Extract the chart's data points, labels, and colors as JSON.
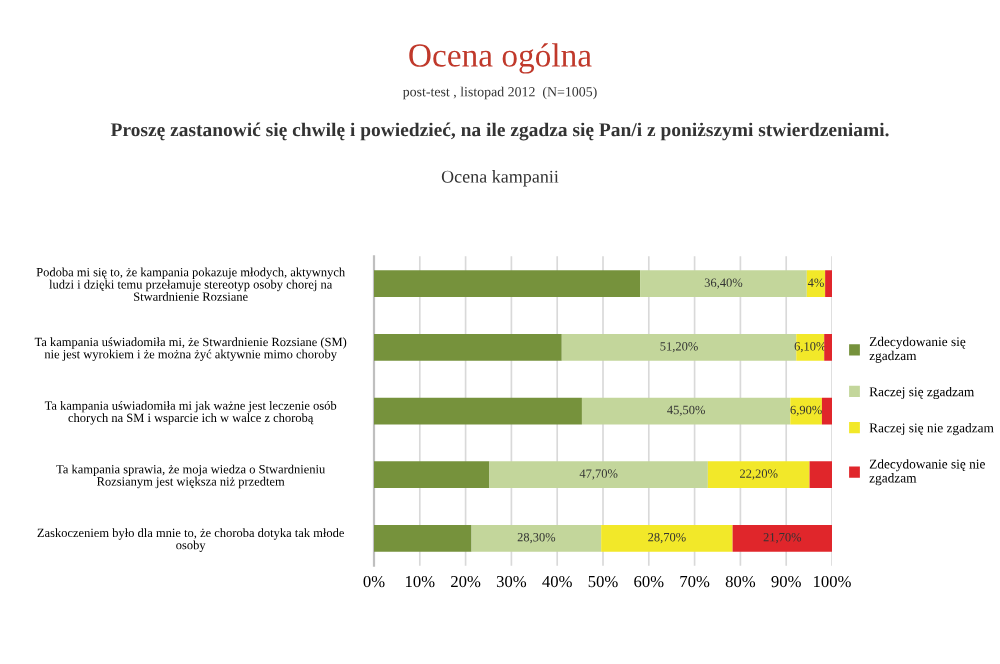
{
  "chart_data": {
    "type": "bar",
    "orientation": "horizontal",
    "stacked": true,
    "title": "Ocena ogólna",
    "subtitle": "post-test , listopad 2012  (N=1005)",
    "annotations": [
      "Proszę zastanowić się chwilę i powiedzieć, na ile zgadza się Pan/i z poniższymi stwierdzeniami.",
      "Ocena kampanii"
    ],
    "categories": [
      "Podoba mi się to, że kampania pokazuje młodych, aktywnych\nludzi i dzięki temu przełamuje stereotyp osoby chorej na\nStwardnienie Rozsiane",
      "Ta kampania uświadomiła mi, że Stwardnienie Rozsiane (SM)\nnie jest wyrokiem i że można żyć aktywnie mimo choroby",
      "Ta kampania uświadomiła mi jak ważne jest leczenie osób\nchorych na SM i wsparcie ich w walce z chorobą",
      "Ta kampania sprawia, że moja wiedza o Stwardnieniu\nRozsianym jest większa niż przedtem",
      "Zaskoczeniem było dla mnie to, że choroba dotyka tak młode\nosoby"
    ],
    "series": [
      {
        "name": "Zdecydowanie się zgadzam",
        "color": "#76923c",
        "values": [
          58.1,
          41.0,
          45.4,
          25.2,
          21.3
        ]
      },
      {
        "name": "Raczej się zgadzam",
        "color": "#c3d69b",
        "values": [
          36.4,
          51.2,
          45.5,
          47.7,
          28.3
        ],
        "value_labels": [
          "36,40%",
          "51,20%",
          "45,50%",
          "47,70%",
          "28,30%"
        ]
      },
      {
        "name": "Raczej się nie zgadzam",
        "color": "#f2e829",
        "values": [
          4,
          6.1,
          6.9,
          22.2,
          28.7
        ],
        "value_labels": [
          "4%",
          "6,10%",
          "6,90%",
          "22,20%",
          "28,70%"
        ]
      },
      {
        "name": "Zdecydowanie się nie zgadzam",
        "color": "#e0262b",
        "values": [
          1.5,
          1.7,
          2.2,
          4.9,
          21.7
        ],
        "value_labels": [
          null,
          null,
          null,
          null,
          "21,70%"
        ]
      }
    ],
    "xlim": [
      0,
      100
    ],
    "xticks": [
      {
        "value": 0,
        "label": "0%"
      },
      {
        "value": 10,
        "label": "10%"
      },
      {
        "value": 20,
        "label": "20%"
      },
      {
        "value": 30,
        "label": "30%"
      },
      {
        "value": 40,
        "label": "40%"
      },
      {
        "value": 50,
        "label": "50%"
      },
      {
        "value": 60,
        "label": "60%"
      },
      {
        "value": 70,
        "label": "70%"
      },
      {
        "value": 80,
        "label": "80%"
      },
      {
        "value": 90,
        "label": "90%"
      },
      {
        "value": 100,
        "label": "100%"
      }
    ],
    "grid": "x",
    "legend": "right"
  }
}
